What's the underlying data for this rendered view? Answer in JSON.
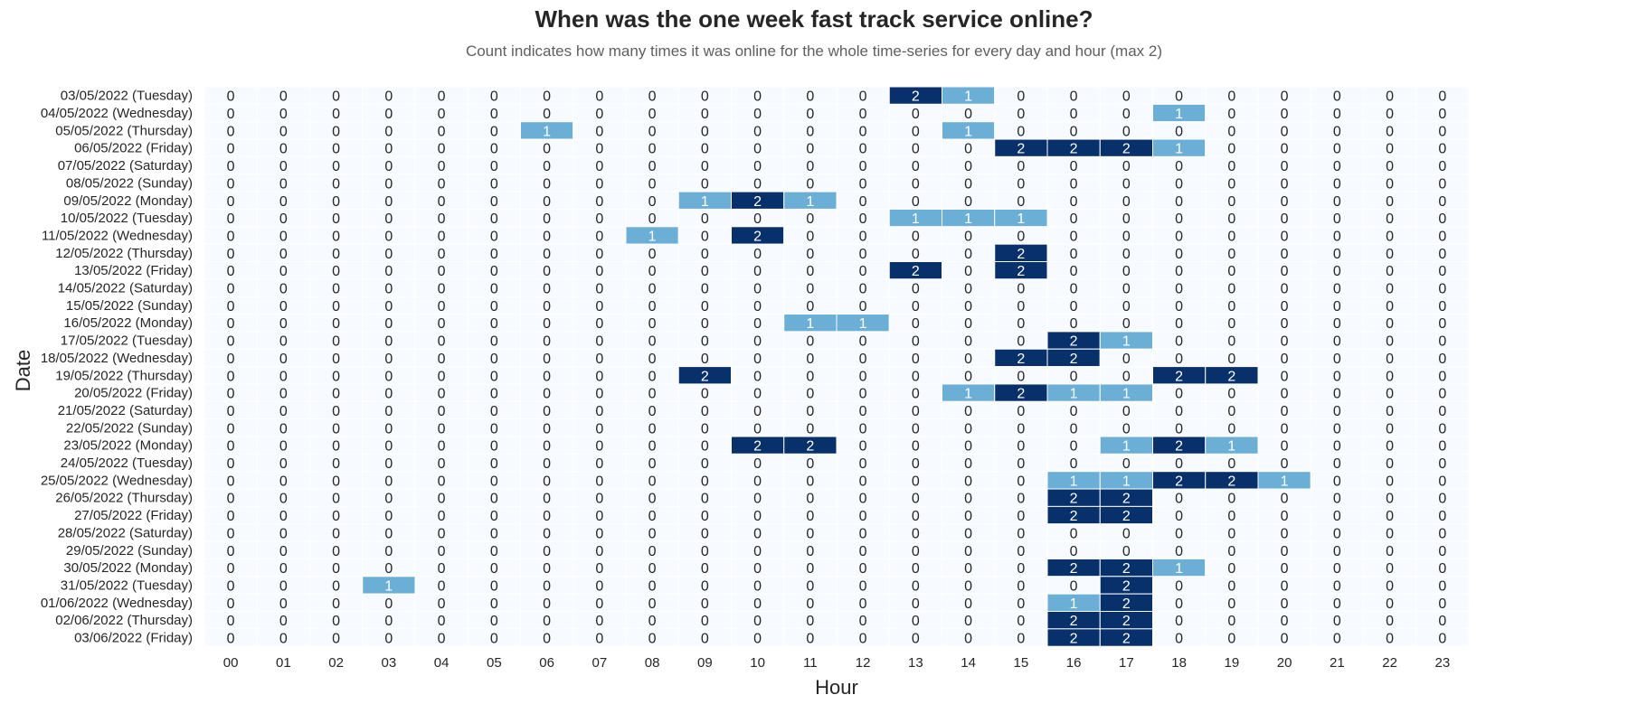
{
  "chart_data": {
    "type": "heatmap",
    "title": "When was the one week fast track service online?",
    "subtitle": "Count indicates how many times it was online for the whole time-series for every day and hour (max 2)",
    "xlabel": "Hour",
    "ylabel": "Date",
    "x": [
      "00",
      "01",
      "02",
      "03",
      "04",
      "05",
      "06",
      "07",
      "08",
      "09",
      "10",
      "11",
      "12",
      "13",
      "14",
      "15",
      "16",
      "17",
      "18",
      "19",
      "20",
      "21",
      "22",
      "23"
    ],
    "y": [
      "03/05/2022 (Tuesday)",
      "04/05/2022 (Wednesday)",
      "05/05/2022 (Thursday)",
      "06/05/2022 (Friday)",
      "07/05/2022 (Saturday)",
      "08/05/2022 (Sunday)",
      "09/05/2022 (Monday)",
      "10/05/2022 (Tuesday)",
      "11/05/2022 (Wednesday)",
      "12/05/2022 (Thursday)",
      "13/05/2022 (Friday)",
      "14/05/2022 (Saturday)",
      "15/05/2022 (Sunday)",
      "16/05/2022 (Monday)",
      "17/05/2022 (Tuesday)",
      "18/05/2022 (Wednesday)",
      "19/05/2022 (Thursday)",
      "20/05/2022 (Friday)",
      "21/05/2022 (Saturday)",
      "22/05/2022 (Sunday)",
      "23/05/2022 (Monday)",
      "24/05/2022 (Tuesday)",
      "25/05/2022 (Wednesday)",
      "26/05/2022 (Thursday)",
      "27/05/2022 (Friday)",
      "28/05/2022 (Saturday)",
      "29/05/2022 (Sunday)",
      "30/05/2022 (Monday)",
      "31/05/2022 (Tuesday)",
      "01/06/2022 (Wednesday)",
      "02/06/2022 (Thursday)",
      "03/06/2022 (Friday)"
    ],
    "values": [
      [
        0,
        0,
        0,
        0,
        0,
        0,
        0,
        0,
        0,
        0,
        0,
        0,
        0,
        2,
        1,
        0,
        0,
        0,
        0,
        0,
        0,
        0,
        0,
        0
      ],
      [
        0,
        0,
        0,
        0,
        0,
        0,
        0,
        0,
        0,
        0,
        0,
        0,
        0,
        0,
        0,
        0,
        0,
        0,
        1,
        0,
        0,
        0,
        0,
        0
      ],
      [
        0,
        0,
        0,
        0,
        0,
        0,
        1,
        0,
        0,
        0,
        0,
        0,
        0,
        0,
        1,
        0,
        0,
        0,
        0,
        0,
        0,
        0,
        0,
        0
      ],
      [
        0,
        0,
        0,
        0,
        0,
        0,
        0,
        0,
        0,
        0,
        0,
        0,
        0,
        0,
        0,
        2,
        2,
        2,
        1,
        0,
        0,
        0,
        0,
        0
      ],
      [
        0,
        0,
        0,
        0,
        0,
        0,
        0,
        0,
        0,
        0,
        0,
        0,
        0,
        0,
        0,
        0,
        0,
        0,
        0,
        0,
        0,
        0,
        0,
        0
      ],
      [
        0,
        0,
        0,
        0,
        0,
        0,
        0,
        0,
        0,
        0,
        0,
        0,
        0,
        0,
        0,
        0,
        0,
        0,
        0,
        0,
        0,
        0,
        0,
        0
      ],
      [
        0,
        0,
        0,
        0,
        0,
        0,
        0,
        0,
        0,
        1,
        2,
        1,
        0,
        0,
        0,
        0,
        0,
        0,
        0,
        0,
        0,
        0,
        0,
        0
      ],
      [
        0,
        0,
        0,
        0,
        0,
        0,
        0,
        0,
        0,
        0,
        0,
        0,
        0,
        1,
        1,
        1,
        0,
        0,
        0,
        0,
        0,
        0,
        0,
        0
      ],
      [
        0,
        0,
        0,
        0,
        0,
        0,
        0,
        0,
        1,
        0,
        2,
        0,
        0,
        0,
        0,
        0,
        0,
        0,
        0,
        0,
        0,
        0,
        0,
        0
      ],
      [
        0,
        0,
        0,
        0,
        0,
        0,
        0,
        0,
        0,
        0,
        0,
        0,
        0,
        0,
        0,
        2,
        0,
        0,
        0,
        0,
        0,
        0,
        0,
        0
      ],
      [
        0,
        0,
        0,
        0,
        0,
        0,
        0,
        0,
        0,
        0,
        0,
        0,
        0,
        2,
        0,
        2,
        0,
        0,
        0,
        0,
        0,
        0,
        0,
        0
      ],
      [
        0,
        0,
        0,
        0,
        0,
        0,
        0,
        0,
        0,
        0,
        0,
        0,
        0,
        0,
        0,
        0,
        0,
        0,
        0,
        0,
        0,
        0,
        0,
        0
      ],
      [
        0,
        0,
        0,
        0,
        0,
        0,
        0,
        0,
        0,
        0,
        0,
        0,
        0,
        0,
        0,
        0,
        0,
        0,
        0,
        0,
        0,
        0,
        0,
        0
      ],
      [
        0,
        0,
        0,
        0,
        0,
        0,
        0,
        0,
        0,
        0,
        0,
        1,
        1,
        0,
        0,
        0,
        0,
        0,
        0,
        0,
        0,
        0,
        0,
        0
      ],
      [
        0,
        0,
        0,
        0,
        0,
        0,
        0,
        0,
        0,
        0,
        0,
        0,
        0,
        0,
        0,
        0,
        2,
        1,
        0,
        0,
        0,
        0,
        0,
        0
      ],
      [
        0,
        0,
        0,
        0,
        0,
        0,
        0,
        0,
        0,
        0,
        0,
        0,
        0,
        0,
        0,
        2,
        2,
        0,
        0,
        0,
        0,
        0,
        0,
        0
      ],
      [
        0,
        0,
        0,
        0,
        0,
        0,
        0,
        0,
        0,
        2,
        0,
        0,
        0,
        0,
        0,
        0,
        0,
        0,
        2,
        2,
        0,
        0,
        0,
        0
      ],
      [
        0,
        0,
        0,
        0,
        0,
        0,
        0,
        0,
        0,
        0,
        0,
        0,
        0,
        0,
        1,
        2,
        1,
        1,
        0,
        0,
        0,
        0,
        0,
        0
      ],
      [
        0,
        0,
        0,
        0,
        0,
        0,
        0,
        0,
        0,
        0,
        0,
        0,
        0,
        0,
        0,
        0,
        0,
        0,
        0,
        0,
        0,
        0,
        0,
        0
      ],
      [
        0,
        0,
        0,
        0,
        0,
        0,
        0,
        0,
        0,
        0,
        0,
        0,
        0,
        0,
        0,
        0,
        0,
        0,
        0,
        0,
        0,
        0,
        0,
        0
      ],
      [
        0,
        0,
        0,
        0,
        0,
        0,
        0,
        0,
        0,
        0,
        2,
        2,
        0,
        0,
        0,
        0,
        0,
        1,
        2,
        1,
        0,
        0,
        0,
        0
      ],
      [
        0,
        0,
        0,
        0,
        0,
        0,
        0,
        0,
        0,
        0,
        0,
        0,
        0,
        0,
        0,
        0,
        0,
        0,
        0,
        0,
        0,
        0,
        0,
        0
      ],
      [
        0,
        0,
        0,
        0,
        0,
        0,
        0,
        0,
        0,
        0,
        0,
        0,
        0,
        0,
        0,
        0,
        1,
        1,
        2,
        2,
        1,
        0,
        0,
        0
      ],
      [
        0,
        0,
        0,
        0,
        0,
        0,
        0,
        0,
        0,
        0,
        0,
        0,
        0,
        0,
        0,
        0,
        2,
        2,
        0,
        0,
        0,
        0,
        0,
        0
      ],
      [
        0,
        0,
        0,
        0,
        0,
        0,
        0,
        0,
        0,
        0,
        0,
        0,
        0,
        0,
        0,
        0,
        2,
        2,
        0,
        0,
        0,
        0,
        0,
        0
      ],
      [
        0,
        0,
        0,
        0,
        0,
        0,
        0,
        0,
        0,
        0,
        0,
        0,
        0,
        0,
        0,
        0,
        0,
        0,
        0,
        0,
        0,
        0,
        0,
        0
      ],
      [
        0,
        0,
        0,
        0,
        0,
        0,
        0,
        0,
        0,
        0,
        0,
        0,
        0,
        0,
        0,
        0,
        0,
        0,
        0,
        0,
        0,
        0,
        0,
        0
      ],
      [
        0,
        0,
        0,
        0,
        0,
        0,
        0,
        0,
        0,
        0,
        0,
        0,
        0,
        0,
        0,
        0,
        2,
        2,
        1,
        0,
        0,
        0,
        0,
        0
      ],
      [
        0,
        0,
        0,
        1,
        0,
        0,
        0,
        0,
        0,
        0,
        0,
        0,
        0,
        0,
        0,
        0,
        0,
        2,
        0,
        0,
        0,
        0,
        0,
        0
      ],
      [
        0,
        0,
        0,
        0,
        0,
        0,
        0,
        0,
        0,
        0,
        0,
        0,
        0,
        0,
        0,
        0,
        1,
        2,
        0,
        0,
        0,
        0,
        0,
        0
      ],
      [
        0,
        0,
        0,
        0,
        0,
        0,
        0,
        0,
        0,
        0,
        0,
        0,
        0,
        0,
        0,
        0,
        2,
        2,
        0,
        0,
        0,
        0,
        0,
        0
      ],
      [
        0,
        0,
        0,
        0,
        0,
        0,
        0,
        0,
        0,
        0,
        0,
        0,
        0,
        0,
        0,
        0,
        2,
        2,
        0,
        0,
        0,
        0,
        0,
        0
      ]
    ],
    "vmin": 0,
    "vmax": 2,
    "colors": {
      "0": "#f7fbff",
      "1": "#6baed6",
      "2": "#08306b"
    },
    "grid": false,
    "colorbar": false
  }
}
